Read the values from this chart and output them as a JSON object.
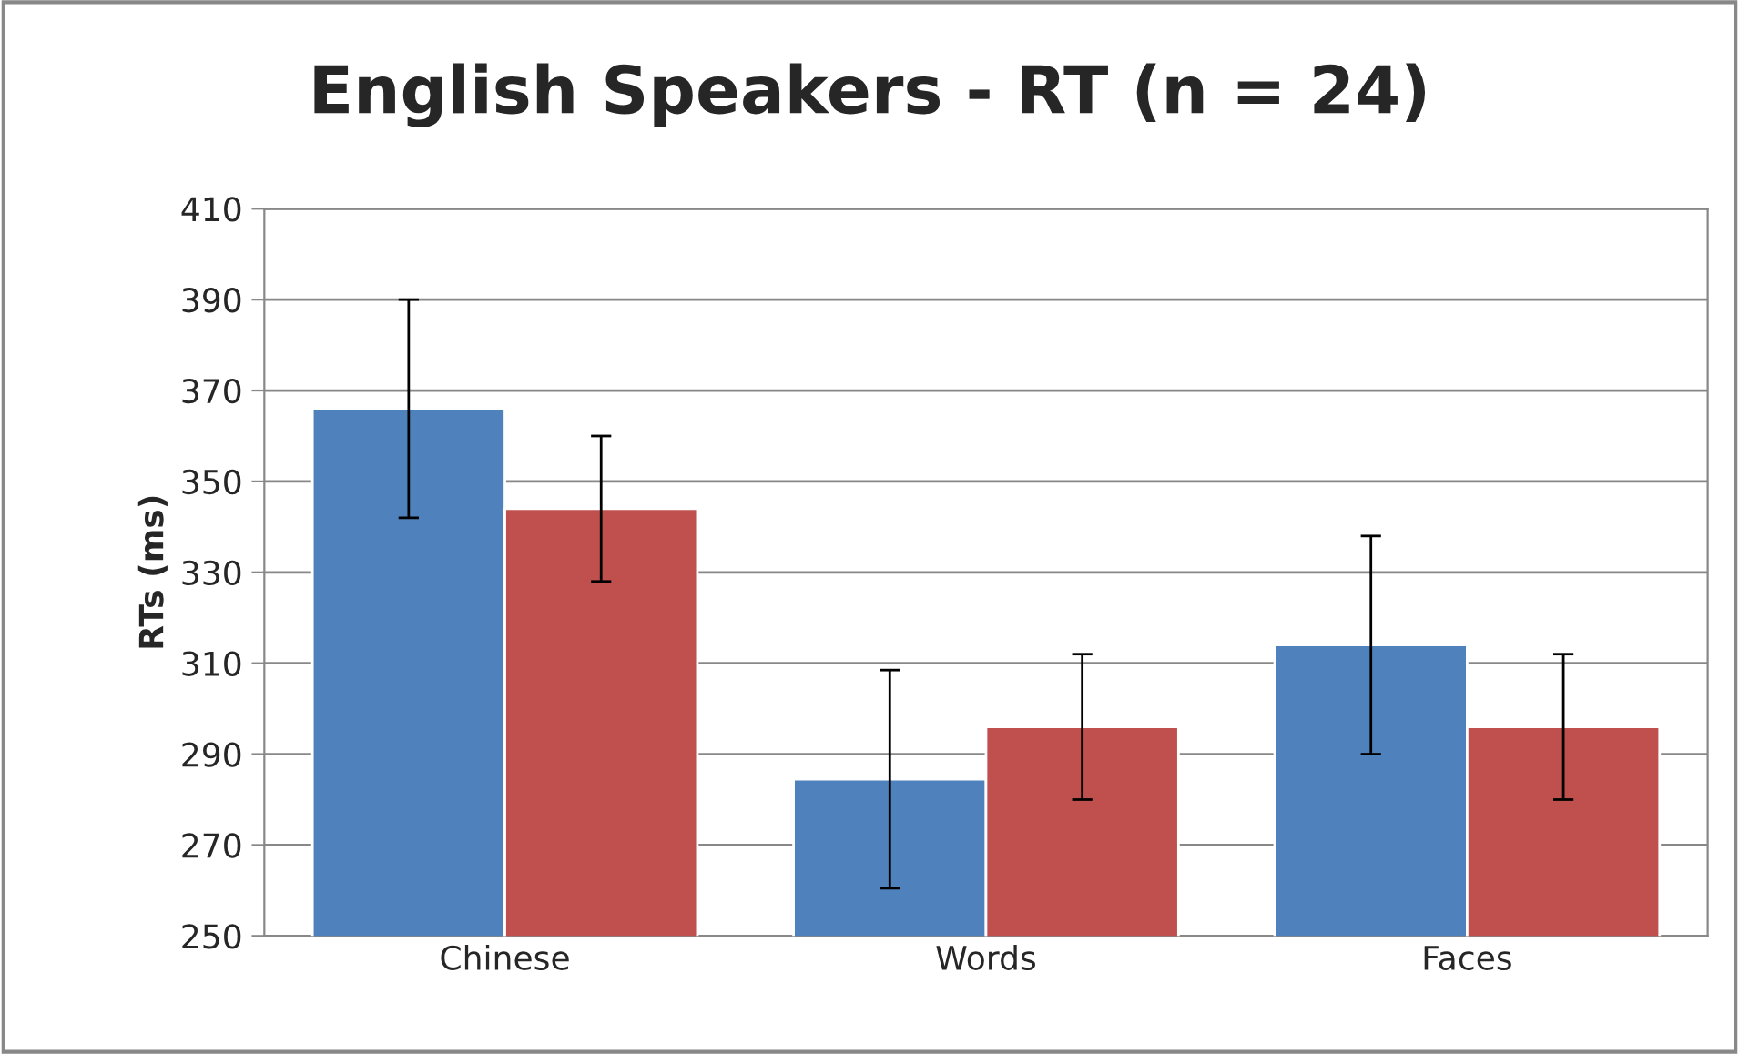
{
  "chart_data": {
    "type": "bar",
    "title": "English Speakers - RT (n = 24)",
    "ylabel": "RTs (ms)",
    "categories": [
      "Chinese",
      "Words",
      "Faces"
    ],
    "series": [
      {
        "color": "#4f81bd",
        "values": [
          366,
          284.5,
          314
        ],
        "errors": [
          24,
          24,
          24
        ]
      },
      {
        "color": "#c0504d",
        "values": [
          344,
          296,
          296
        ],
        "errors": [
          16,
          16,
          16
        ]
      }
    ],
    "ylim": [
      250,
      410
    ],
    "yticks": [
      250,
      270,
      290,
      310,
      330,
      350,
      370,
      390,
      410
    ],
    "grid": "y"
  }
}
